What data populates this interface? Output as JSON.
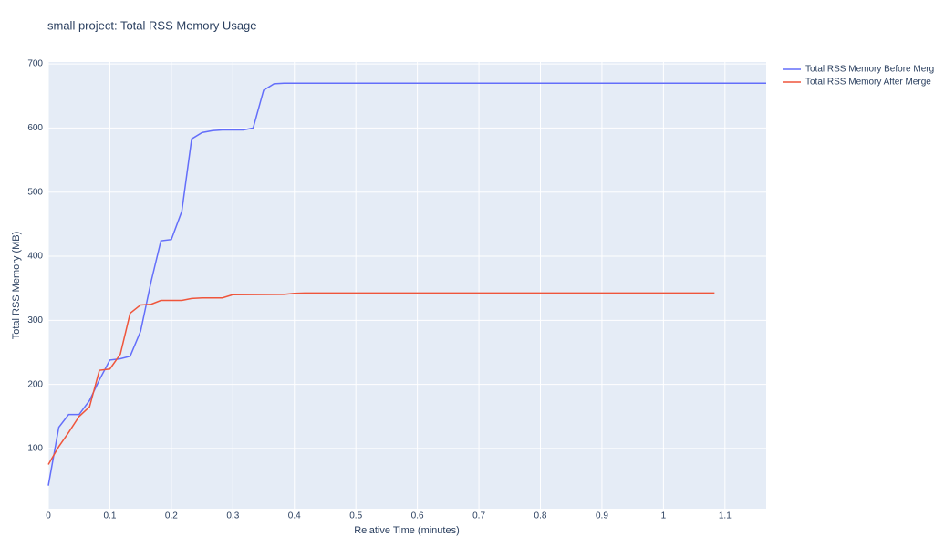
{
  "chart_data": {
    "type": "line",
    "title": "small project: Total RSS Memory Usage",
    "x_label": "Relative Time (minutes)",
    "y_label": "Total RSS Memory (MB)",
    "xlim": [
      0,
      1.167
    ],
    "ylim": [
      6,
      703
    ],
    "xticks": [
      0,
      0.1,
      0.2,
      0.3,
      0.4,
      0.5,
      0.6,
      0.7,
      0.8,
      0.9,
      1,
      1.1
    ],
    "yticks": [
      100,
      200,
      300,
      400,
      500,
      600,
      700
    ],
    "grid": true,
    "legend": "top-right",
    "series": [
      {
        "name": "Total RSS Memory Before Merge",
        "color": "#636efa",
        "x": [
          0,
          0.017,
          0.033,
          0.05,
          0.067,
          0.083,
          0.1,
          0.117,
          0.133,
          0.15,
          0.167,
          0.183,
          0.2,
          0.217,
          0.233,
          0.25,
          0.267,
          0.283,
          0.3,
          0.317,
          0.333,
          0.35,
          0.367,
          0.383,
          1.167
        ],
        "values": [
          42,
          133,
          153,
          153,
          175,
          207,
          238,
          240,
          244,
          283,
          360,
          424,
          426,
          470,
          583,
          593,
          596,
          597,
          597,
          597,
          600,
          659,
          669,
          670,
          670
        ]
      },
      {
        "name": "Total RSS Memory After Merge",
        "color": "#ef553b",
        "x": [
          0,
          0.017,
          0.033,
          0.05,
          0.067,
          0.083,
          0.1,
          0.117,
          0.133,
          0.15,
          0.167,
          0.183,
          0.2,
          0.217,
          0.233,
          0.25,
          0.267,
          0.283,
          0.3,
          0.383,
          0.4,
          0.417,
          1.083
        ],
        "values": [
          75,
          103,
          125,
          150,
          165,
          222,
          224,
          247,
          311,
          324,
          325,
          331,
          331,
          331,
          334,
          335,
          335,
          335,
          340,
          340.5,
          342,
          342.5,
          342.5
        ]
      }
    ]
  }
}
